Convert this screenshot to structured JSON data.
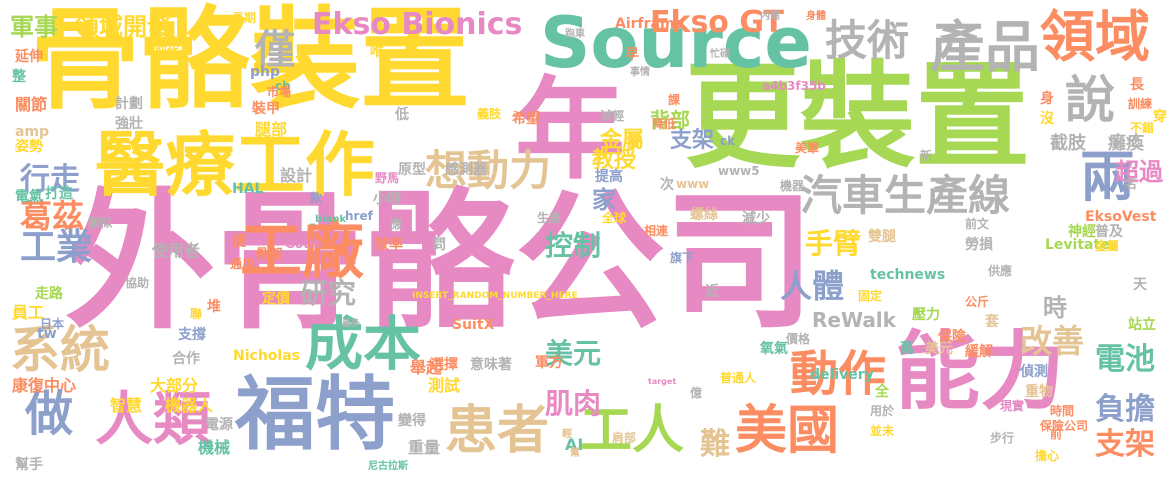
{
  "word_cloud": {
    "colors": {
      "pink": "#e78ac3",
      "green": "#a6d854",
      "yellow": "#ffd92f",
      "tan": "#e5c494",
      "gray": "#b3b3b3",
      "orange": "#fc8d62",
      "teal": "#66c2a5",
      "blue": "#8da0cb"
    },
    "words": [
      "外骨骼公司",
      "骨骼裝置",
      "更裝置",
      "年",
      "Source",
      "能力",
      "福特",
      "醫療工作",
      "Ekso Bionics",
      "產品",
      "技術",
      "領域",
      "說",
      "兩",
      "汽車生產線",
      "想動力",
      "工廠",
      "成本",
      "人類",
      "做",
      "系統",
      "患者",
      "美國",
      "工人",
      "Ekso GT",
      "僅",
      "工業",
      "葛茲",
      "行走",
      "軍事",
      "領域開發",
      "研究",
      "控制",
      "美元",
      "動作",
      "改善",
      "電池",
      "負擔",
      "支架",
      "人體",
      "手臂",
      "肌肉",
      "難",
      "教授",
      "家",
      "金屬",
      "支架",
      "背部",
      "截肢",
      "癱瘓",
      "超過",
      "ReWalk",
      "SuitX",
      "Levitate",
      "EksoVest",
      "technews",
      "HAL",
      "Nicholas",
      "INSERT_RANDOM_NUMBER_HERE",
      "Airframe",
      "a4b3f35b",
      "delivery",
      "target",
      "_blank",
      "href",
      "Gotts",
      "www5",
      "www",
      "php",
      "cb",
      "ck",
      "tw",
      "amp",
      "AI",
      "n",
      "大部分",
      "智慧",
      "機器人",
      "康復中心",
      "員工",
      "走路",
      "日本",
      "使用者",
      "協助",
      "設計",
      "腿部",
      "裝甲",
      "市場",
      "計劃",
      "強壯",
      "姿勢",
      "關節",
      "電氣",
      "打造",
      "類似",
      "延伸",
      "整",
      "長期",
      "取代",
      "唯一",
      "原型",
      "感測器",
      "減輕",
      "降低",
      "義肢",
      "事情",
      "內建",
      "身體",
      "希望",
      "舉起",
      "軍方",
      "測試",
      "重量",
      "選擇",
      "意味著",
      "變得",
      "機械",
      "電源",
      "幫手",
      "尼古拉斯",
      "肩部",
      "輕",
      "幫",
      "普通人",
      "氧氣",
      "萬",
      "美元",
      "緩解",
      "偵測",
      "重物",
      "時間",
      "現實",
      "保險公司",
      "前",
      "步行",
      "擔心",
      "用於",
      "並未",
      "全",
      "億",
      "壓力",
      "套",
      "公斤",
      "供應",
      "保險",
      "價格",
      "固定",
      "旗下",
      "螺絲",
      "相連",
      "減少",
      "全球",
      "生產",
      "提高",
      "機器",
      "美軍",
      "雙腿",
      "勞損",
      "前文",
      "神經",
      "普及",
      "金屬",
      "站立",
      "天",
      "名",
      "穿",
      "不錯",
      "訓練",
      "長",
      "身",
      "沒",
      "新",
      "次",
      "效率",
      "應",
      "問",
      "近",
      "最多",
      "小時",
      "款",
      "野馬",
      "通用",
      "骨架",
      "便",
      "定價",
      "合作",
      "支撐",
      "堆",
      "聯",
      "早",
      "忙碌",
      "跑車",
      "低",
      "課",
      "時"
    ]
  }
}
